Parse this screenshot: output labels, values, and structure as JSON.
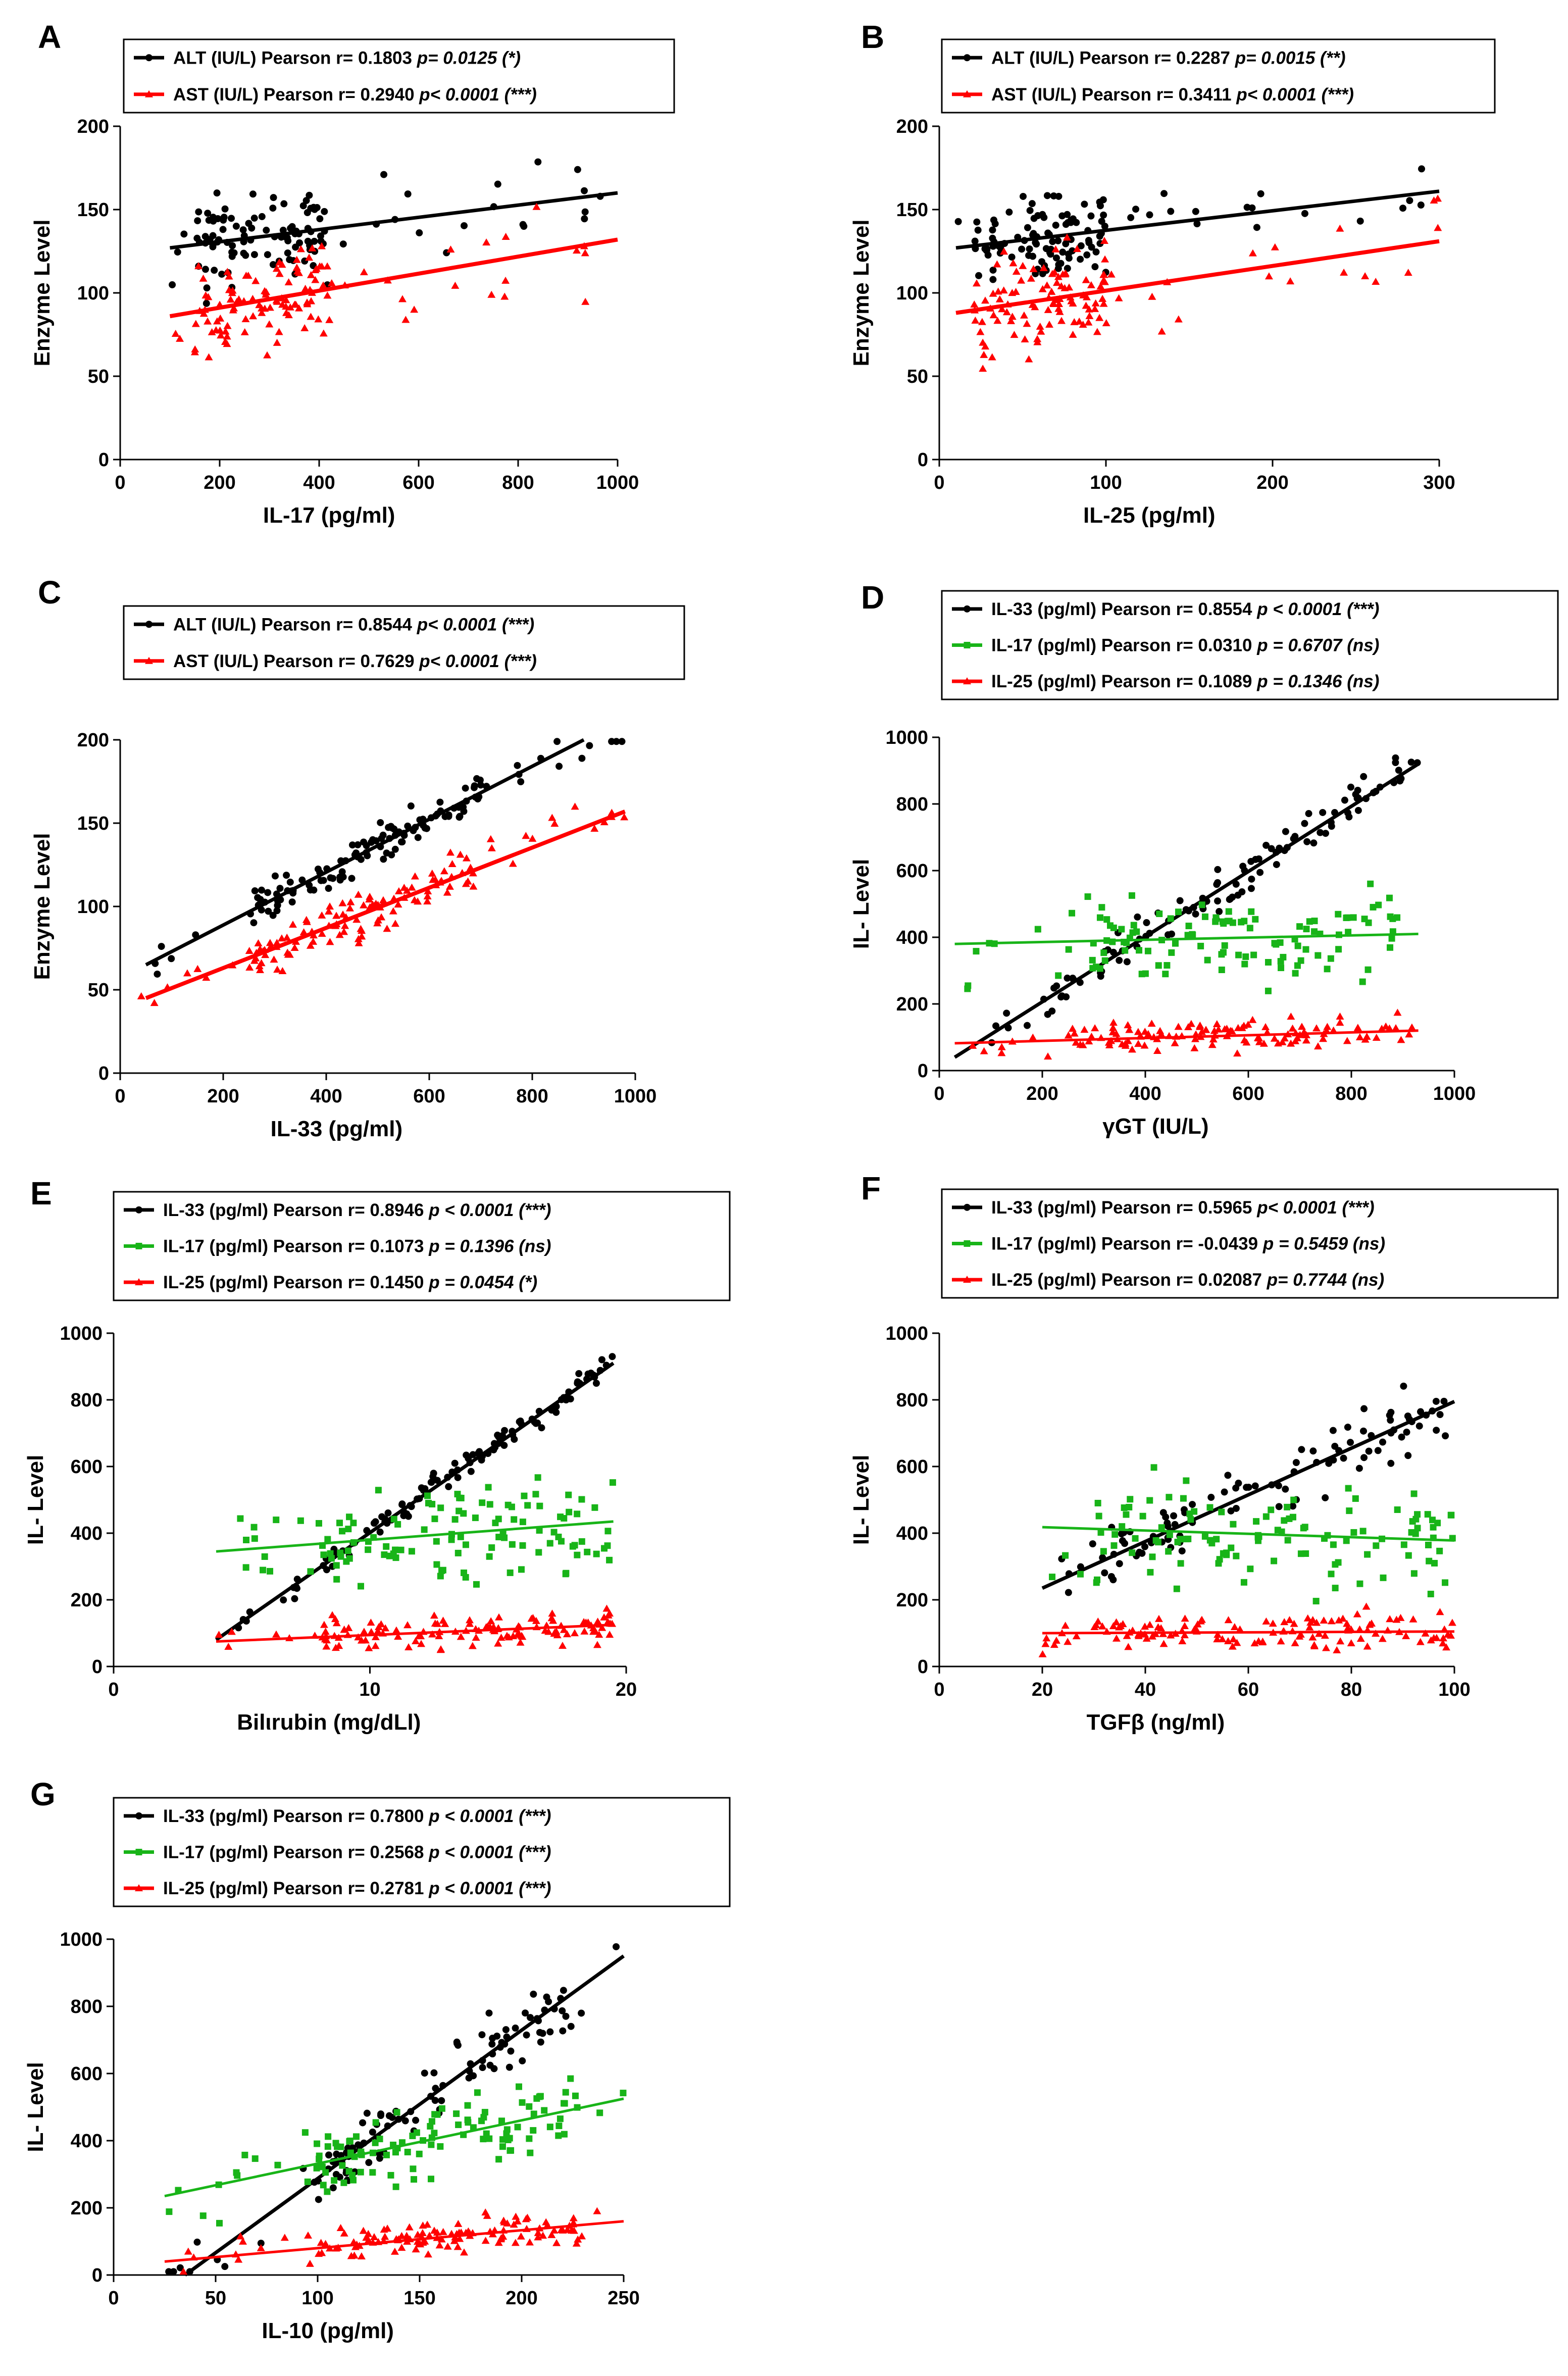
{
  "colors": {
    "black": "#000000",
    "red": "#ff0000",
    "green": "#18b418"
  },
  "chart_data": [
    {
      "panel": "A",
      "type": "scatter",
      "xlabel": "IL-17 (pg/ml)",
      "ylabel": "Enzyme Level",
      "xlim": [
        0,
        1000
      ],
      "ylim": [
        0,
        200
      ],
      "xticks": [
        0,
        200,
        400,
        600,
        800,
        1000
      ],
      "yticks": [
        0,
        50,
        100,
        150,
        200
      ],
      "tick_labels_x": [
        "0",
        "200",
        "400",
        "600",
        "800",
        "1000"
      ],
      "tick_labels_y": [
        "0",
        "50",
        "100",
        "150",
        "200"
      ],
      "legend": "top",
      "series": [
        {
          "name": "ALT (IU/L)",
          "stat": "Pearson r= 0.1803",
          "p": "p= 0.0125 (*)",
          "marker": "circle",
          "color": "#000000",
          "fit": [
            [
              100,
              127
            ],
            [
              1000,
              160
            ]
          ],
          "n": 120,
          "xrange": [
            100,
            990
          ],
          "cluster": [
            150,
            420
          ],
          "spread": 38
        },
        {
          "name": "AST (IU/L)",
          "stat": "Pearson r= 0.2940",
          "p": "p< 0.0001 (***)",
          "marker": "triangle",
          "color": "#ff0000",
          "fit": [
            [
              100,
              86
            ],
            [
              1000,
              132
            ]
          ],
          "n": 120,
          "xrange": [
            100,
            990
          ],
          "cluster": [
            150,
            420
          ],
          "spread": 42
        }
      ]
    },
    {
      "panel": "B",
      "type": "scatter",
      "xlabel": "IL-25 (pg/ml)",
      "ylabel": "Enzyme Level",
      "xlim": [
        0,
        300
      ],
      "ylim": [
        0,
        200
      ],
      "xticks": [
        0,
        100,
        200,
        300
      ],
      "yticks": [
        0,
        50,
        100,
        150,
        200
      ],
      "tick_labels_x": [
        "0",
        "100",
        "200",
        "300"
      ],
      "tick_labels_y": [
        "0",
        "50",
        "100",
        "150",
        "200"
      ],
      "legend": "top",
      "series": [
        {
          "name": "ALT (IU/L)",
          "stat": "Pearson r= 0.2287",
          "p": "p= 0.0015 (**)",
          "marker": "circle",
          "color": "#000000",
          "fit": [
            [
              10,
              127
            ],
            [
              300,
              161
            ]
          ],
          "n": 120,
          "xrange": [
            10,
            300
          ],
          "cluster": [
            20,
            100
          ],
          "spread": 38
        },
        {
          "name": "AST (IU/L)",
          "stat": "Pearson r= 0.3411",
          "p": "p< 0.0001 (***)",
          "marker": "triangle",
          "color": "#ff0000",
          "fit": [
            [
              10,
              88
            ],
            [
              300,
              131
            ]
          ],
          "n": 120,
          "xrange": [
            10,
            300
          ],
          "cluster": [
            20,
            100
          ],
          "spread": 42
        }
      ]
    },
    {
      "panel": "C",
      "type": "scatter",
      "xlabel": "IL-33 (pg/ml)",
      "ylabel": "Enzyme Level",
      "xlim": [
        0,
        1000
      ],
      "ylim": [
        0,
        200
      ],
      "xticks": [
        0,
        200,
        400,
        600,
        800,
        1000
      ],
      "yticks": [
        0,
        50,
        100,
        150,
        200
      ],
      "tick_labels_x": [
        "0",
        "200",
        "400",
        "600",
        "800",
        "1000"
      ],
      "tick_labels_y": [
        "0",
        "50",
        "100",
        "150",
        "200"
      ],
      "legend": "top",
      "series": [
        {
          "name": "ALT (IU/L)",
          "stat": "Pearson r= 0.8544",
          "p": "p< 0.0001 (***)",
          "marker": "circle",
          "color": "#000000",
          "fit": [
            [
              50,
              65
            ],
            [
              900,
              200
            ]
          ],
          "n": 130,
          "xrange": [
            40,
            980
          ],
          "cluster": [
            250,
            700
          ],
          "spread": 16
        },
        {
          "name": "AST (IU/L)",
          "stat": "Pearson r= 0.7629",
          "p": "p< 0.0001 (***)",
          "marker": "triangle",
          "color": "#ff0000",
          "fit": [
            [
              50,
              45
            ],
            [
              980,
              157
            ]
          ],
          "n": 130,
          "xrange": [
            40,
            980
          ],
          "cluster": [
            250,
            700
          ],
          "spread": 22
        }
      ]
    },
    {
      "panel": "D",
      "type": "scatter",
      "xlabel": "γGT (IU/L)",
      "ylabel": "IL- Level",
      "xlim": [
        0,
        1000
      ],
      "ylim": [
        0,
        1000
      ],
      "xticks": [
        0,
        200,
        400,
        600,
        800,
        1000
      ],
      "yticks": [
        0,
        200,
        400,
        600,
        800,
        1000
      ],
      "tick_labels_x": [
        "0",
        "200",
        "400",
        "600",
        "800",
        "1000"
      ],
      "tick_labels_y": [
        "0",
        "200",
        "400",
        "600",
        "800",
        "1000"
      ],
      "legend": "top",
      "series": [
        {
          "name": "IL-33 (pg/ml)",
          "stat": "Pearson r= 0.8554",
          "p": "p < 0.0001 (***)",
          "marker": "circle",
          "color": "#000000",
          "fit": [
            [
              30,
              40
            ],
            [
              930,
              920
            ]
          ],
          "n": 110,
          "xrange": [
            30,
            930
          ],
          "cluster": [
            200,
            900
          ],
          "spread": 90
        },
        {
          "name": "IL-17 (pg/ml)",
          "stat": "Pearson r= 0.0310",
          "p": "p = 0.6707 (ns)",
          "marker": "square",
          "color": "#18b418",
          "fit": [
            [
              30,
              380
            ],
            [
              930,
              410
            ]
          ],
          "n": 120,
          "xrange": [
            30,
            930
          ],
          "cluster": [
            250,
            900
          ],
          "spread": 220
        },
        {
          "name": "IL-25 (pg/ml)",
          "stat": "Pearson r= 0.1089",
          "p": "p = 0.1346 (ns)",
          "marker": "triangle",
          "color": "#ff0000",
          "fit": [
            [
              30,
              82
            ],
            [
              930,
              120
            ]
          ],
          "n": 130,
          "xrange": [
            30,
            930
          ],
          "cluster": [
            250,
            900
          ],
          "spread": 70
        }
      ]
    },
    {
      "panel": "E",
      "type": "scatter",
      "xlabel": "Bilιrubin (mg/dLl)",
      "ylabel": "IL- Level",
      "xlim": [
        0,
        20
      ],
      "ylim": [
        0,
        1000
      ],
      "xticks": [
        0,
        10,
        20
      ],
      "yticks": [
        0,
        200,
        400,
        600,
        800,
        1000
      ],
      "tick_labels_x": [
        "0",
        "10",
        "20"
      ],
      "tick_labels_y": [
        "0",
        "200",
        "400",
        "600",
        "800",
        "1000"
      ],
      "legend": "top",
      "series": [
        {
          "name": "IL-33 (pg/ml)",
          "stat": "Pearson r= 0.8946",
          "p": "p < 0.0001 (***)",
          "marker": "circle",
          "color": "#000000",
          "fit": [
            [
              4,
              80
            ],
            [
              19.5,
              910
            ]
          ],
          "n": 110,
          "xrange": [
            4,
            19.5
          ],
          "cluster": [
            8,
            19.5
          ],
          "spread": 60
        },
        {
          "name": "IL-17 (pg/ml)",
          "stat": "Pearson r= 0.1073",
          "p": "p = 0.1396 (ns)",
          "marker": "square",
          "color": "#18b418",
          "fit": [
            [
              4,
              345
            ],
            [
              19.5,
              435
            ]
          ],
          "n": 120,
          "xrange": [
            4,
            19.5
          ],
          "cluster": [
            8,
            19.5
          ],
          "spread": 220
        },
        {
          "name": "IL-25 (pg/ml)",
          "stat": "Pearson r= 0.1450",
          "p": "p = 0.0454 (*)",
          "marker": "triangle",
          "color": "#ff0000",
          "fit": [
            [
              4,
              75
            ],
            [
              19.5,
              125
            ]
          ],
          "n": 130,
          "xrange": [
            4,
            19.5
          ],
          "cluster": [
            8,
            19.5
          ],
          "spread": 75
        }
      ]
    },
    {
      "panel": "F",
      "type": "scatter",
      "xlabel": "TGFβ (ng/ml)",
      "ylabel": "IL- Level",
      "xlim": [
        0,
        100
      ],
      "ylim": [
        0,
        1000
      ],
      "xticks": [
        0,
        20,
        40,
        60,
        80,
        100
      ],
      "yticks": [
        0,
        200,
        400,
        600,
        800,
        1000
      ],
      "tick_labels_x": [
        "0",
        "20",
        "40",
        "60",
        "80",
        "100"
      ],
      "tick_labels_y": [
        "0",
        "200",
        "400",
        "600",
        "800",
        "1000"
      ],
      "legend": "top",
      "series": [
        {
          "name": "IL-33 (pg/ml)",
          "stat": "Pearson r= 0.5965",
          "p": "p< 0.0001 (***)",
          "marker": "circle",
          "color": "#000000",
          "fit": [
            [
              20,
              235
            ],
            [
              100,
              795
            ]
          ],
          "n": 100,
          "xrange": [
            20,
            100
          ],
          "cluster": [
            30,
            100
          ],
          "spread": 140
        },
        {
          "name": "IL-17 (pg/ml)",
          "stat": "Pearson r= -0.0439",
          "p": "p = 0.5459 (ns)",
          "marker": "square",
          "color": "#18b418",
          "fit": [
            [
              20,
              418
            ],
            [
              100,
              378
            ]
          ],
          "n": 120,
          "xrange": [
            20,
            100
          ],
          "cluster": [
            30,
            100
          ],
          "spread": 230
        },
        {
          "name": "IL-25 (pg/ml)",
          "stat": "Pearson r= 0.02087",
          "p": "p= 0.7744 (ns)",
          "marker": "triangle",
          "color": "#ff0000",
          "fit": [
            [
              20,
              100
            ],
            [
              100,
              105
            ]
          ],
          "n": 130,
          "xrange": [
            20,
            100
          ],
          "cluster": [
            30,
            100
          ],
          "spread": 80
        }
      ]
    },
    {
      "panel": "G",
      "type": "scatter",
      "xlabel": "IL-10 (pg/ml)",
      "ylabel": "IL- Level",
      "xlim": [
        0,
        250
      ],
      "ylim": [
        0,
        1000
      ],
      "xticks": [
        0,
        50,
        100,
        150,
        200,
        250
      ],
      "yticks": [
        0,
        200,
        400,
        600,
        800,
        1000
      ],
      "tick_labels_x": [
        "0",
        "50",
        "100",
        "150",
        "200",
        "250"
      ],
      "tick_labels_y": [
        "0",
        "200",
        "400",
        "600",
        "800",
        "1000"
      ],
      "legend": "top",
      "series": [
        {
          "name": "IL-33 (pg/ml)",
          "stat": "Pearson r= 0.7800",
          "p": "p < 0.0001 (***)",
          "marker": "circle",
          "color": "#000000",
          "fit": [
            [
              35,
              0
            ],
            [
              250,
              950
            ]
          ],
          "n": 110,
          "xrange": [
            25,
            250
          ],
          "cluster": [
            100,
            230
          ],
          "spread": 140
        },
        {
          "name": "IL-17 (pg/ml)",
          "stat": "Pearson r= 0.2568",
          "p": "p < 0.0001 (***)",
          "marker": "square",
          "color": "#18b418",
          "fit": [
            [
              25,
              235
            ],
            [
              250,
              525
            ]
          ],
          "n": 120,
          "xrange": [
            25,
            250
          ],
          "cluster": [
            100,
            230
          ],
          "spread": 160
        },
        {
          "name": "IL-25 (pg/ml)",
          "stat": "Pearson r= 0.2781",
          "p": "p < 0.0001 (***)",
          "marker": "triangle",
          "color": "#ff0000",
          "fit": [
            [
              25,
              40
            ],
            [
              250,
              160
            ]
          ],
          "n": 130,
          "xrange": [
            25,
            250
          ],
          "cluster": [
            100,
            230
          ],
          "spread": 80
        }
      ]
    }
  ]
}
